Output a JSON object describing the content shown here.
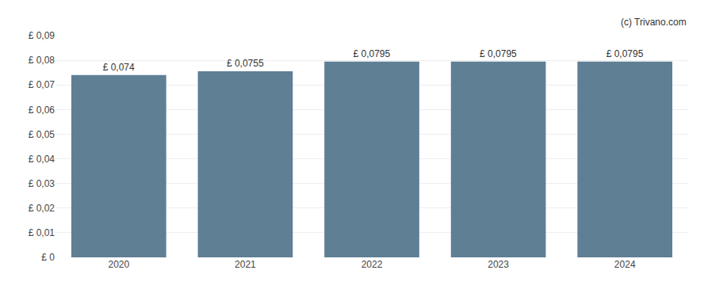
{
  "chart_data": {
    "type": "bar",
    "categories": [
      "2020",
      "2021",
      "2022",
      "2023",
      "2024"
    ],
    "values": [
      0.074,
      0.0755,
      0.0795,
      0.0795,
      0.0795
    ],
    "value_labels": [
      "£ 0,074",
      "£ 0,0755",
      "£ 0,0795",
      "£ 0,0795",
      "£ 0,0795"
    ],
    "data_labels": true,
    "color": "#5f7f95",
    "ylim": [
      0,
      0.09
    ],
    "yticks": [
      {
        "value": 0,
        "label": "£ 0"
      },
      {
        "value": 0.01,
        "label": "£ 0,01"
      },
      {
        "value": 0.02,
        "label": "£ 0,02"
      },
      {
        "value": 0.03,
        "label": "£ 0,03"
      },
      {
        "value": 0.04,
        "label": "£ 0,04"
      },
      {
        "value": 0.05,
        "label": "£ 0,05"
      },
      {
        "value": 0.06,
        "label": "£ 0,06"
      },
      {
        "value": 0.07,
        "label": "£ 0,07"
      },
      {
        "value": 0.08,
        "label": "£ 0,08"
      },
      {
        "value": 0.09,
        "label": "£ 0,09"
      }
    ],
    "grid": true,
    "annotations": [
      "(c) Trivano.com"
    ]
  }
}
